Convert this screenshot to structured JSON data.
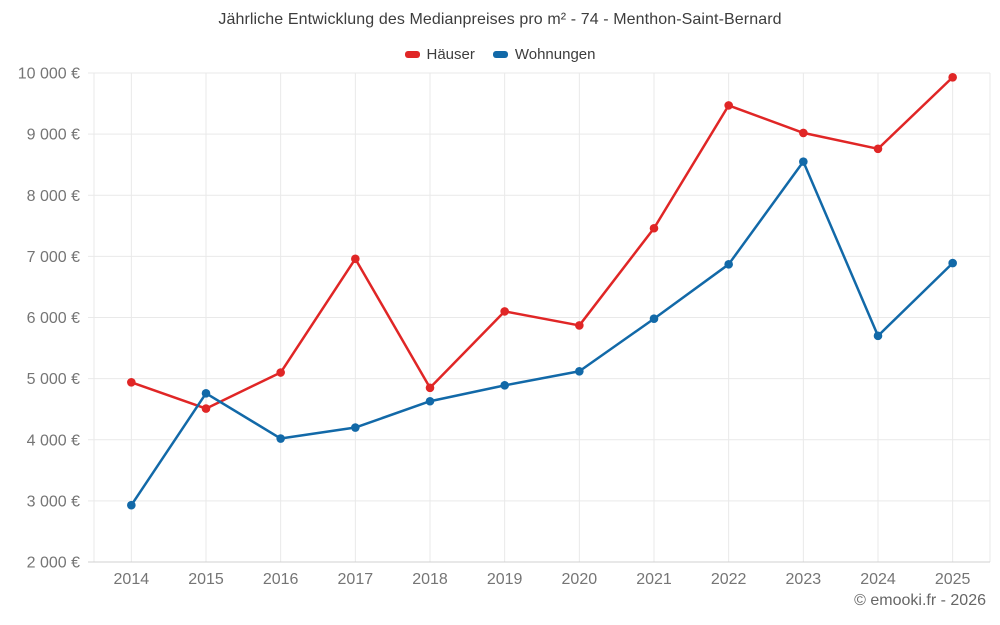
{
  "title": "Jährliche Entwicklung des Medianpreises pro m² - 74 - Menthon-Saint-Bernard",
  "legend": {
    "items": [
      {
        "label": "Häuser",
        "color": "#e02626"
      },
      {
        "label": "Wohnungen",
        "color": "#1269a8"
      }
    ]
  },
  "footer": {
    "credit": "© emooki.fr - 2026"
  },
  "colors": {
    "hauser_red": "#e02626",
    "wohnungen_blue": "#1269a8",
    "grid": "#e9e9e9",
    "axis": "#d0d0d0",
    "tick_label": "#757575",
    "title_text": "#3d3d3d"
  },
  "chart_data": {
    "type": "line",
    "title": "Jährliche Entwicklung des Medianpreises pro m² - 74 - Menthon-Saint-Bernard",
    "categories": [
      "2014",
      "2015",
      "2016",
      "2017",
      "2018",
      "2019",
      "2020",
      "2021",
      "2022",
      "2023",
      "2024",
      "2025"
    ],
    "series": [
      {
        "name": "Häuser",
        "color": "#e02626",
        "values": [
          4940,
          4510,
          5100,
          6960,
          4850,
          6100,
          5870,
          7460,
          9470,
          9020,
          8760,
          9930
        ]
      },
      {
        "name": "Wohnungen",
        "color": "#1269a8",
        "values": [
          2930,
          4760,
          4020,
          4200,
          4630,
          4890,
          5120,
          5980,
          6870,
          8550,
          5700,
          6890
        ]
      }
    ],
    "xlabel": "",
    "ylabel": "",
    "ylim": [
      2000,
      10000
    ],
    "ytick_step": 1000,
    "ytick_labels": [
      "2 000 €",
      "3 000 €",
      "4 000 €",
      "5 000 €",
      "6 000 €",
      "7 000 €",
      "8 000 €",
      "9 000 €",
      "10 000 €"
    ],
    "ytick_suffix": " €",
    "grid": true,
    "legend_position": "top",
    "marker_radius": 4.3,
    "line_width": 2.5
  }
}
